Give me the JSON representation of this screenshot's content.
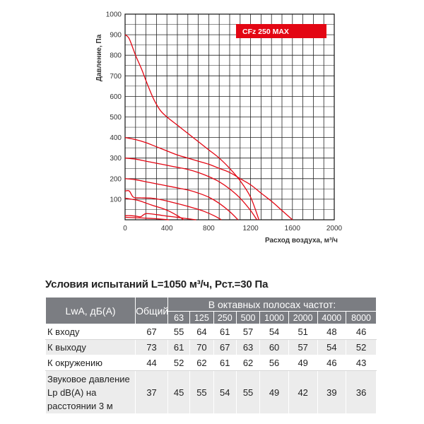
{
  "chart_data": {
    "type": "line",
    "xlabel": "Расход воздуха, м³/ч",
    "ylabel": "Давление, Па",
    "xlim": [
      0,
      2000
    ],
    "ylim": [
      0,
      1000
    ],
    "x_ticks": [
      "0",
      "400",
      "800",
      "1200",
      "1600",
      "2000"
    ],
    "y_ticks": [
      "100",
      "200",
      "300",
      "400",
      "500",
      "600",
      "700",
      "800",
      "900",
      "1000"
    ],
    "grid": true,
    "tag": "CFz 250 MAX",
    "tag_color": "#e30613",
    "series_color": "#e30613",
    "series": [
      {
        "x": [
          0,
          40,
          100,
          160,
          220,
          280,
          340,
          400,
          500,
          600,
          700,
          800,
          900,
          1000,
          1100,
          1200,
          1280
        ],
        "y": [
          900,
          880,
          800,
          730,
          650,
          580,
          530,
          500,
          460,
          420,
          380,
          340,
          300,
          250,
          190,
          110,
          0
        ]
      },
      {
        "x": [
          0,
          100,
          200,
          300,
          400,
          500,
          600,
          700,
          800,
          900,
          1000,
          1100,
          1200,
          1300,
          1400,
          1500,
          1600
        ],
        "y": [
          400,
          390,
          375,
          355,
          335,
          315,
          300,
          285,
          270,
          250,
          230,
          200,
          170,
          130,
          90,
          45,
          0
        ]
      },
      {
        "x": [
          0,
          100,
          200,
          300,
          400,
          500,
          600,
          700,
          800,
          900,
          1000,
          1100,
          1200,
          1260
        ],
        "y": [
          300,
          295,
          285,
          275,
          265,
          255,
          245,
          230,
          210,
          185,
          150,
          105,
          45,
          0
        ]
      },
      {
        "x": [
          0,
          100,
          200,
          300,
          400,
          500,
          600,
          700,
          800,
          900,
          1000,
          1080
        ],
        "y": [
          200,
          195,
          185,
          175,
          165,
          155,
          145,
          130,
          110,
          80,
          40,
          0
        ]
      },
      {
        "x": [
          0,
          40,
          80,
          150,
          250,
          350,
          450,
          550,
          650,
          750,
          850,
          920
        ],
        "y": [
          140,
          140,
          110,
          107,
          105,
          97,
          85,
          72,
          58,
          42,
          20,
          0
        ]
      },
      {
        "x": [
          0,
          60,
          120,
          180,
          250,
          340,
          420,
          500,
          560
        ],
        "y": [
          105,
          100,
          95,
          85,
          72,
          58,
          42,
          20,
          0
        ]
      },
      {
        "x": [
          0,
          50,
          100,
          150,
          200,
          300,
          400,
          500,
          600,
          680
        ],
        "y": [
          20,
          20,
          18,
          15,
          30,
          25,
          18,
          12,
          5,
          0
        ]
      },
      {
        "x": [
          0,
          100,
          200,
          300,
          420
        ],
        "y": [
          12,
          10,
          8,
          5,
          0
        ]
      }
    ]
  },
  "conditions_title": "Условия испытаний L=1050 м³/ч, Рст.=30 Па",
  "table": {
    "col1_header": "LwA, дБ(А)",
    "col2_header": "Общий",
    "bands_header": "В октавных полосах частот:",
    "bands": [
      "63",
      "125",
      "250",
      "500",
      "1000",
      "2000",
      "4000",
      "8000"
    ],
    "rows": [
      {
        "label": "К входу",
        "total": "67",
        "values": [
          "55",
          "64",
          "61",
          "57",
          "54",
          "51",
          "48",
          "46"
        ]
      },
      {
        "label": "К выходу",
        "total": "73",
        "values": [
          "61",
          "70",
          "67",
          "63",
          "60",
          "57",
          "54",
          "52"
        ]
      },
      {
        "label": "К окружению",
        "total": "44",
        "values": [
          "52",
          "62",
          "61",
          "62",
          "56",
          "49",
          "46",
          "43"
        ]
      },
      {
        "label": "Звуковое давление Lp dB(A) на расстоянии 3 м",
        "total": "37",
        "values": [
          "45",
          "55",
          "54",
          "55",
          "49",
          "42",
          "39",
          "36"
        ]
      }
    ]
  }
}
